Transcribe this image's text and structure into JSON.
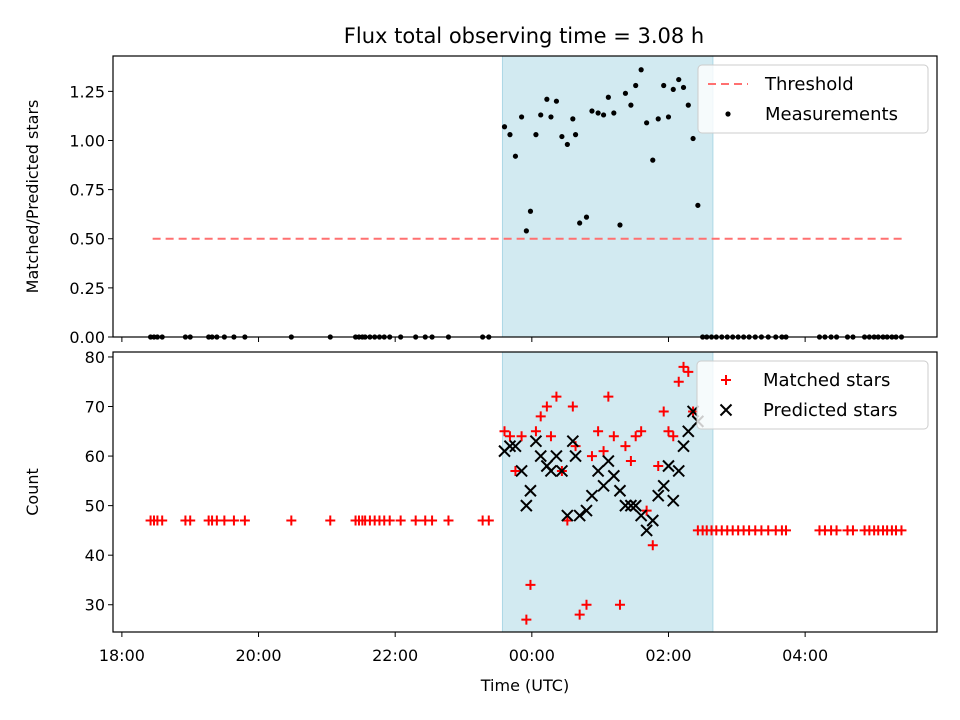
{
  "title": "Flux total observing time = 3.08 h",
  "chart_data": [
    {
      "type": "scatter",
      "ylabel": "Matched/Predicted stars",
      "ylim": [
        0,
        1.43
      ],
      "yticks": [
        "0.00",
        "0.25",
        "0.50",
        "0.75",
        "1.00",
        "1.25"
      ],
      "ytick_values": [
        0,
        0.25,
        0.5,
        0.75,
        1.0,
        1.25
      ],
      "shaded_interval_hours": [
        23.57,
        26.65
      ],
      "shade_color": "#add8e6",
      "legend_position": "top-right",
      "threshold": {
        "name": "Threshold",
        "y": 0.5,
        "x_range": [
          18.45,
          29.45
        ],
        "color": "#ff7070"
      },
      "measurements": {
        "name": "Measurements",
        "color": "#000000",
        "x": [
          18.42,
          18.47,
          18.52,
          18.59,
          18.93,
          19.0,
          19.27,
          19.32,
          19.39,
          19.5,
          19.64,
          19.8,
          20.48,
          21.05,
          21.42,
          21.47,
          21.52,
          21.56,
          21.63,
          21.7,
          21.77,
          21.84,
          21.92,
          22.08,
          22.3,
          22.44,
          22.54,
          22.78,
          23.28,
          23.37,
          23.6,
          23.68,
          23.76,
          23.85,
          23.92,
          23.98,
          24.06,
          24.13,
          24.22,
          24.28,
          24.36,
          24.44,
          24.52,
          24.6,
          24.64,
          24.7,
          24.8,
          24.88,
          24.97,
          25.05,
          25.12,
          25.2,
          25.29,
          25.37,
          25.45,
          25.52,
          25.6,
          25.68,
          25.77,
          25.85,
          25.93,
          26.0,
          26.07,
          26.15,
          26.22,
          26.29,
          26.36,
          26.43,
          26.5,
          26.56,
          26.63,
          26.7,
          26.78,
          26.86,
          26.94,
          27.02,
          27.1,
          27.18,
          27.27,
          27.36,
          27.46,
          27.57,
          27.66,
          27.72,
          28.21,
          28.29,
          28.38,
          28.46,
          28.62,
          28.7,
          28.87,
          28.94,
          29.01,
          29.07,
          29.14,
          29.2,
          29.27,
          29.33,
          29.41
        ],
        "y": [
          0,
          0,
          0,
          0,
          0,
          0,
          0,
          0,
          0,
          0,
          0,
          0,
          0,
          0,
          0,
          0,
          0,
          0,
          0,
          0,
          0,
          0,
          0,
          0,
          0,
          0,
          0,
          0,
          0,
          0,
          1.07,
          1.03,
          0.92,
          1.12,
          0.54,
          0.64,
          1.03,
          1.13,
          1.21,
          1.12,
          1.2,
          1.02,
          0.98,
          1.11,
          1.03,
          0.58,
          0.61,
          1.15,
          1.14,
          1.13,
          1.22,
          1.14,
          0.57,
          1.24,
          1.18,
          1.28,
          1.36,
          1.09,
          0.9,
          1.11,
          1.28,
          1.12,
          1.26,
          1.31,
          1.27,
          1.18,
          1.01,
          0.67,
          0,
          0,
          0,
          0,
          0,
          0,
          0,
          0,
          0,
          0,
          0,
          0,
          0,
          0,
          0,
          0,
          0,
          0,
          0,
          0,
          0,
          0,
          0,
          0,
          0,
          0,
          0,
          0,
          0,
          0,
          0
        ]
      }
    },
    {
      "type": "scatter",
      "xlabel": "Time (UTC)",
      "ylabel": "Count",
      "ylim": [
        24.5,
        81
      ],
      "yticks": [
        "30",
        "40",
        "50",
        "60",
        "70",
        "80"
      ],
      "ytick_values": [
        30,
        40,
        50,
        60,
        70,
        80
      ],
      "xticks": [
        "18:00",
        "20:00",
        "22:00",
        "00:00",
        "02:00",
        "04:00"
      ],
      "xtick_values": [
        18,
        20,
        22,
        24,
        26,
        28
      ],
      "xlim": [
        17.87,
        29.93
      ],
      "shaded_interval_hours": [
        23.57,
        26.65
      ],
      "legend_position": "top-right",
      "matched": {
        "name": "Matched stars",
        "color": "#ff0000",
        "x": [
          18.42,
          18.47,
          18.52,
          18.59,
          18.93,
          19.0,
          19.27,
          19.32,
          19.39,
          19.5,
          19.64,
          19.8,
          20.48,
          21.05,
          21.42,
          21.47,
          21.52,
          21.56,
          21.63,
          21.7,
          21.77,
          21.84,
          21.92,
          22.08,
          22.3,
          22.44,
          22.54,
          22.78,
          23.28,
          23.37,
          23.6,
          23.68,
          23.76,
          23.85,
          23.92,
          23.98,
          24.06,
          24.13,
          24.22,
          24.28,
          24.36,
          24.44,
          24.52,
          24.6,
          24.64,
          24.7,
          24.8,
          24.88,
          24.97,
          25.05,
          25.12,
          25.2,
          25.29,
          25.37,
          25.45,
          25.52,
          25.6,
          25.68,
          25.77,
          25.85,
          25.93,
          26.0,
          26.07,
          26.15,
          26.22,
          26.29,
          26.36,
          26.43,
          26.5,
          26.56,
          26.63,
          26.7,
          26.78,
          26.86,
          26.94,
          27.02,
          27.1,
          27.18,
          27.27,
          27.36,
          27.46,
          27.57,
          27.66,
          27.72,
          28.21,
          28.29,
          28.38,
          28.46,
          28.62,
          28.7,
          28.87,
          28.94,
          29.01,
          29.07,
          29.14,
          29.2,
          29.27,
          29.33,
          29.41
        ],
        "y": [
          47,
          47,
          47,
          47,
          47,
          47,
          47,
          47,
          47,
          47,
          47,
          47,
          47,
          47,
          47,
          47,
          47,
          47,
          47,
          47,
          47,
          47,
          47,
          47,
          47,
          47,
          47,
          47,
          47,
          47,
          65,
          64,
          57,
          64,
          27,
          34,
          65,
          68,
          70,
          64,
          72,
          57,
          47,
          70,
          62,
          28,
          30,
          60,
          65,
          61,
          72,
          64,
          30,
          62,
          59,
          64,
          65,
          49,
          42,
          58,
          69,
          65,
          64,
          75,
          78,
          77,
          69,
          45,
          45,
          45,
          45,
          45,
          45,
          45,
          45,
          45,
          45,
          45,
          45,
          45,
          45,
          45,
          45,
          45,
          45,
          45,
          45,
          45,
          45,
          45,
          45,
          45,
          45,
          45,
          45,
          45,
          45,
          45,
          45
        ]
      },
      "predicted": {
        "name": "Predicted stars",
        "color": "#000000",
        "x": [
          23.6,
          23.68,
          23.76,
          23.85,
          23.92,
          23.98,
          24.06,
          24.13,
          24.22,
          24.28,
          24.36,
          24.44,
          24.52,
          24.6,
          24.64,
          24.7,
          24.8,
          24.88,
          24.97,
          25.05,
          25.12,
          25.2,
          25.29,
          25.37,
          25.45,
          25.52,
          25.6,
          25.68,
          25.77,
          25.85,
          25.93,
          26.0,
          26.07,
          26.15,
          26.22,
          26.29,
          26.36,
          26.43
        ],
        "y": [
          61,
          62,
          62,
          57,
          50,
          53,
          63,
          60,
          58,
          57,
          60,
          57,
          48,
          63,
          60,
          48,
          49,
          52,
          57,
          54,
          59,
          56,
          53,
          50,
          50,
          50,
          48,
          45,
          47,
          52,
          54,
          58,
          51,
          57,
          62,
          65,
          69,
          67
        ]
      }
    }
  ]
}
